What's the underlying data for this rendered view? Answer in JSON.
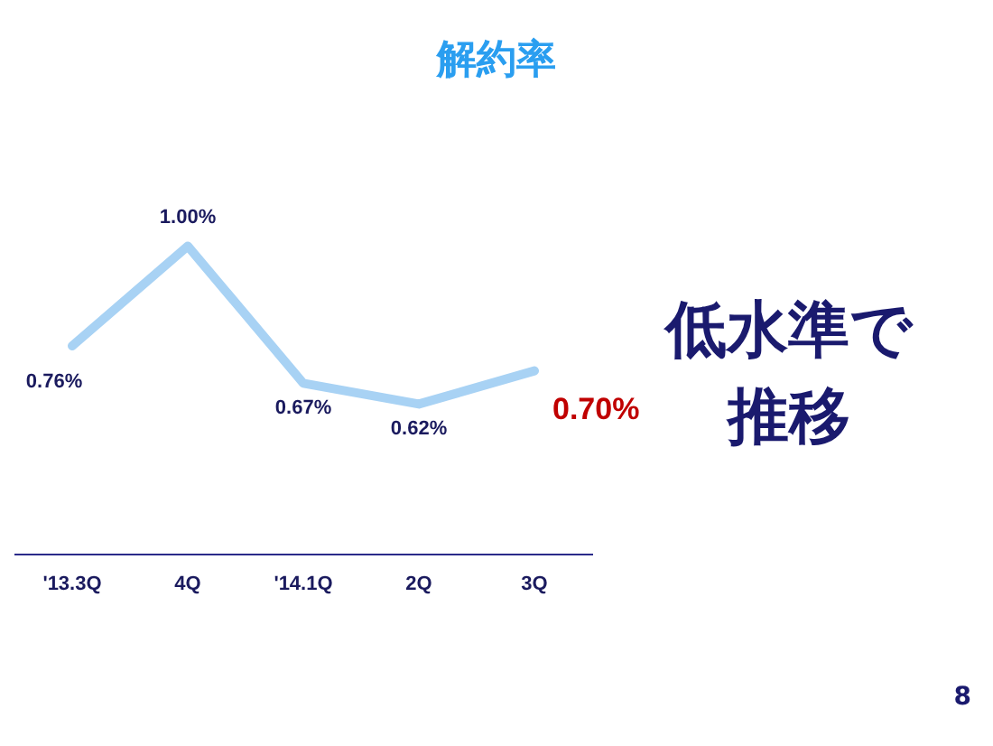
{
  "chart_data": {
    "type": "line",
    "title": "解約率",
    "categories": [
      "'13.3Q",
      "4Q",
      "'14.1Q",
      "2Q",
      "3Q"
    ],
    "series": [
      {
        "color": "#a8d2f4",
        "values": [
          0.76,
          1.0,
          0.67,
          0.62,
          0.7
        ],
        "value_labels": [
          "0.76%",
          "1.00%",
          "0.67%",
          "0.62%",
          "0.70%"
        ]
      }
    ],
    "tick_labels": "x",
    "grid": false,
    "legend": false,
    "marker": "none",
    "line_style": "solid",
    "annotations": [
      "低水準で推移",
      "8"
    ]
  }
}
